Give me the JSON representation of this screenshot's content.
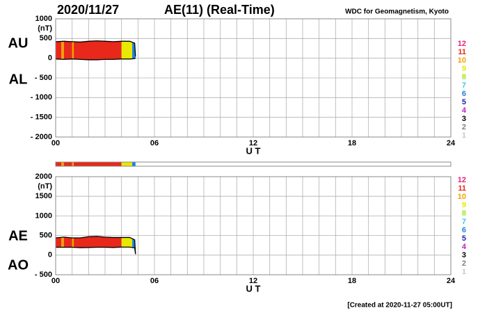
{
  "header": {
    "date": "2020/11/27",
    "title": "AE(11) (Real-Time)",
    "source": "WDC for Geomagnetism, Kyoto"
  },
  "footer": "[Created at 2020-11-27 05:00UT]",
  "stations": [
    {
      "name": "12",
      "color": "#e8207f"
    },
    {
      "name": "11",
      "color": "#e8281a"
    },
    {
      "name": "10",
      "color": "#f0a000"
    },
    {
      "name": "9",
      "color": "#e8e800"
    },
    {
      "name": "8",
      "color": "#a0e020"
    },
    {
      "name": "7",
      "color": "#30d0e8"
    },
    {
      "name": "6",
      "color": "#2080e0"
    },
    {
      "name": "5",
      "color": "#2020b0"
    },
    {
      "name": "4",
      "color": "#c020c0"
    },
    {
      "name": "3",
      "color": "#000000"
    },
    {
      "name": "2",
      "color": "#808080"
    },
    {
      "name": "1",
      "color": "#c8c8c8"
    }
  ],
  "bands": [
    {
      "from": 0,
      "to": 0.35,
      "station": 1
    },
    {
      "from": 0.35,
      "to": 0.5,
      "station": 2
    },
    {
      "from": 0.5,
      "to": 1.0,
      "station": 1
    },
    {
      "from": 1.0,
      "to": 1.1,
      "station": 2
    },
    {
      "from": 1.1,
      "to": 4.0,
      "station": 1
    },
    {
      "from": 4.0,
      "to": 4.65,
      "station": 3
    },
    {
      "from": 4.65,
      "to": 4.85,
      "station": 6
    }
  ],
  "chart_data": [
    {
      "type": "area",
      "unit": "(nT)",
      "xlabel": "U T",
      "xlim": [
        0,
        24
      ],
      "xticks": [
        {
          "value": 0,
          "label": "00"
        },
        {
          "value": 6,
          "label": "06"
        },
        12,
        18,
        24
      ],
      "xgrid": [
        0,
        1,
        2,
        3,
        4,
        5,
        6,
        7,
        8,
        9,
        10,
        11,
        12,
        13,
        14,
        15,
        16,
        17,
        18,
        19,
        20,
        21,
        22,
        23,
        24
      ],
      "ylim": [
        -2000,
        1000
      ],
      "yticks": [
        1000,
        500,
        0,
        {
          "value": -500,
          "label": "- 500"
        },
        {
          "value": -1000,
          "label": "- 1000"
        },
        {
          "value": -1500,
          "label": "- 1500"
        },
        {
          "value": -2000,
          "label": "- 2000"
        }
      ],
      "grid": true,
      "x": [
        0,
        0.5,
        1,
        1.5,
        2,
        2.5,
        3,
        3.5,
        4,
        4.5,
        4.8,
        4.85
      ],
      "series": [
        {
          "name": "AU",
          "values": [
            420,
            430,
            420,
            410,
            430,
            440,
            430,
            420,
            430,
            430,
            380,
            40
          ]
        },
        {
          "name": "AL",
          "values": [
            -20,
            -30,
            -20,
            -30,
            -40,
            -40,
            -30,
            -30,
            -20,
            -20,
            -10,
            10
          ]
        }
      ]
    },
    {
      "type": "area",
      "unit": "(nT)",
      "xlabel": "U T",
      "xlim": [
        0,
        24
      ],
      "xticks": [
        {
          "value": 0,
          "label": "00"
        },
        {
          "value": 6,
          "label": "06"
        },
        12,
        18,
        24
      ],
      "xgrid": [
        0,
        1,
        2,
        3,
        4,
        5,
        6,
        7,
        8,
        9,
        10,
        11,
        12,
        13,
        14,
        15,
        16,
        17,
        18,
        19,
        20,
        21,
        22,
        23,
        24
      ],
      "ylim": [
        -500,
        2000
      ],
      "yticks": [
        2000,
        1500,
        1000,
        500,
        0,
        {
          "value": -500,
          "label": "- 500"
        }
      ],
      "grid": true,
      "x": [
        0,
        0.5,
        1,
        1.5,
        2,
        2.5,
        3,
        3.5,
        4,
        4.5,
        4.8,
        4.85
      ],
      "series": [
        {
          "name": "AE",
          "values": [
            440,
            460,
            440,
            440,
            470,
            480,
            460,
            450,
            450,
            450,
            390,
            30
          ]
        },
        {
          "name": "AO",
          "values": [
            200,
            200,
            200,
            190,
            195,
            200,
            200,
            195,
            205,
            205,
            185,
            25
          ]
        }
      ]
    }
  ]
}
